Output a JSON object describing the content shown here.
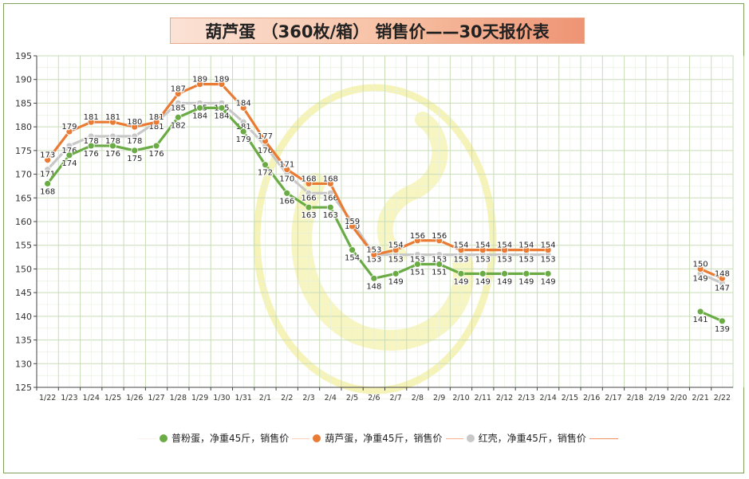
{
  "title": "葫芦蛋 （360枚/箱） 销售价——30天报价表",
  "colors": {
    "series1": "#6aab45",
    "series2": "#e97b35",
    "series3": "#c8c8c8",
    "grid": "#c9dcb8",
    "axis": "#444444",
    "watermark": "#f2ee9a"
  },
  "chart_data": {
    "type": "line",
    "title": "葫芦蛋 （360枚/箱） 销售价——30天报价表",
    "categories": [
      "1/22",
      "1/23",
      "1/24",
      "1/25",
      "1/26",
      "1/27",
      "1/28",
      "1/29",
      "1/30",
      "1/31",
      "2/1",
      "2/2",
      "2/3",
      "2/4",
      "2/5",
      "2/6",
      "2/7",
      "2/8",
      "2/9",
      "2/10",
      "2/11",
      "2/12",
      "2/13",
      "2/14",
      "2/15",
      "2/16",
      "2/17",
      "2/18",
      "2/19",
      "2/20",
      "2/21",
      "2/22"
    ],
    "ylim": [
      125,
      195
    ],
    "yticks": [
      125,
      130,
      135,
      140,
      145,
      150,
      155,
      160,
      165,
      170,
      175,
      180,
      185,
      190,
      195
    ],
    "grid": true,
    "legend_position": "bottom",
    "series": [
      {
        "name": "普粉蛋，净重45斤，销售价",
        "values": [
          168,
          174,
          176,
          176,
          175,
          176,
          182,
          184,
          184,
          179,
          172,
          166,
          163,
          163,
          154,
          148,
          149,
          151,
          151,
          149,
          149,
          149,
          149,
          149,
          null,
          null,
          null,
          null,
          null,
          null,
          141,
          139
        ]
      },
      {
        "name": "葫芦蛋，净重45斤，销售价",
        "values": [
          173,
          179,
          181,
          181,
          180,
          181,
          187,
          189,
          189,
          184,
          177,
          171,
          168,
          168,
          159,
          153,
          154,
          156,
          156,
          154,
          154,
          154,
          154,
          154,
          null,
          null,
          null,
          null,
          null,
          null,
          150,
          148
        ]
      },
      {
        "name": "红壳，净重45斤，销售价",
        "values": [
          171,
          176,
          178,
          178,
          178,
          181,
          185,
          185,
          185,
          181,
          176,
          170,
          166,
          166,
          160,
          153,
          153,
          153,
          153,
          153,
          153,
          153,
          153,
          153,
          null,
          null,
          null,
          null,
          null,
          null,
          149,
          147
        ]
      }
    ]
  }
}
